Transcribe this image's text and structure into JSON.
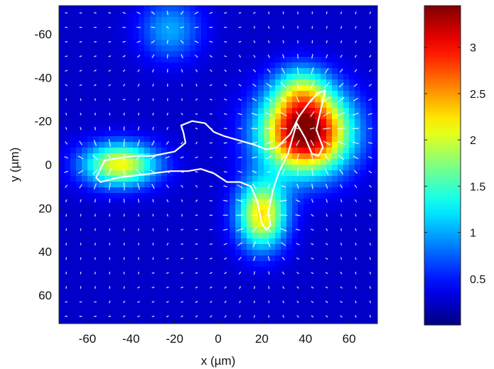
{
  "chart_data": {
    "type": "heatmap",
    "xlabel": "x (µm)",
    "ylabel": "y (µm)",
    "xlim": [
      -73,
      73
    ],
    "ylim": [
      -73,
      73
    ],
    "y_inverted": true,
    "xticks": [
      -60,
      -40,
      -20,
      0,
      20,
      40,
      60
    ],
    "yticks": [
      -60,
      -40,
      -20,
      0,
      20,
      40,
      60
    ],
    "colorbar": {
      "range": [
        0,
        3.45
      ],
      "ticks": [
        0.5,
        1,
        1.5,
        2,
        2.5,
        3
      ],
      "colormap": "jet"
    },
    "hotspots": [
      {
        "x": 40,
        "y": -15,
        "peak": 3.4,
        "sx": 14,
        "sy": 13
      },
      {
        "x": 20,
        "y": 23,
        "peak": 2.0,
        "sx": 8,
        "sy": 11
      },
      {
        "x": -45,
        "y": 0,
        "peak": 1.9,
        "sx": 12,
        "sy": 7
      },
      {
        "x": -22,
        "y": -62,
        "peak": 0.75,
        "sx": 10,
        "sy": 10
      },
      {
        "x": 38,
        "y": -35,
        "peak": 0.9,
        "sx": 9,
        "sy": 8
      }
    ],
    "background_level": 0.25,
    "cell_outline": [
      [
        -55,
        4
      ],
      [
        -52,
        -2
      ],
      [
        -46,
        -3
      ],
      [
        -38,
        -4
      ],
      [
        -30,
        -4
      ],
      [
        -20,
        -6
      ],
      [
        -15,
        -10
      ],
      [
        -16,
        -15
      ],
      [
        -17,
        -18
      ],
      [
        -12,
        -20
      ],
      [
        -6,
        -19
      ],
      [
        -2,
        -15
      ],
      [
        3,
        -13
      ],
      [
        10,
        -11
      ],
      [
        17,
        -9
      ],
      [
        22,
        -7
      ],
      [
        27,
        -8
      ],
      [
        33,
        -14
      ],
      [
        37,
        -22
      ],
      [
        42,
        -29
      ],
      [
        46,
        -33
      ],
      [
        49,
        -34
      ],
      [
        47,
        -25
      ],
      [
        45,
        -16
      ],
      [
        48,
        -8
      ],
      [
        46,
        -4
      ],
      [
        43,
        -5
      ],
      [
        40,
        -12
      ],
      [
        36,
        -19
      ],
      [
        34,
        -12
      ],
      [
        32,
        -5
      ],
      [
        28,
        3
      ],
      [
        25,
        12
      ],
      [
        23,
        22
      ],
      [
        24,
        28
      ],
      [
        22,
        30
      ],
      [
        20,
        27
      ],
      [
        18,
        17
      ],
      [
        15,
        10
      ],
      [
        10,
        8
      ],
      [
        4,
        8
      ],
      [
        -2,
        4
      ],
      [
        -8,
        2
      ],
      [
        -14,
        3
      ],
      [
        -22,
        3
      ],
      [
        -30,
        4
      ],
      [
        -38,
        5
      ],
      [
        -46,
        6
      ],
      [
        -54,
        8
      ],
      [
        -56,
        6
      ],
      [
        -55,
        4
      ]
    ]
  },
  "colors": {
    "outline": "#ffffff",
    "arrows": "#ffffff"
  }
}
